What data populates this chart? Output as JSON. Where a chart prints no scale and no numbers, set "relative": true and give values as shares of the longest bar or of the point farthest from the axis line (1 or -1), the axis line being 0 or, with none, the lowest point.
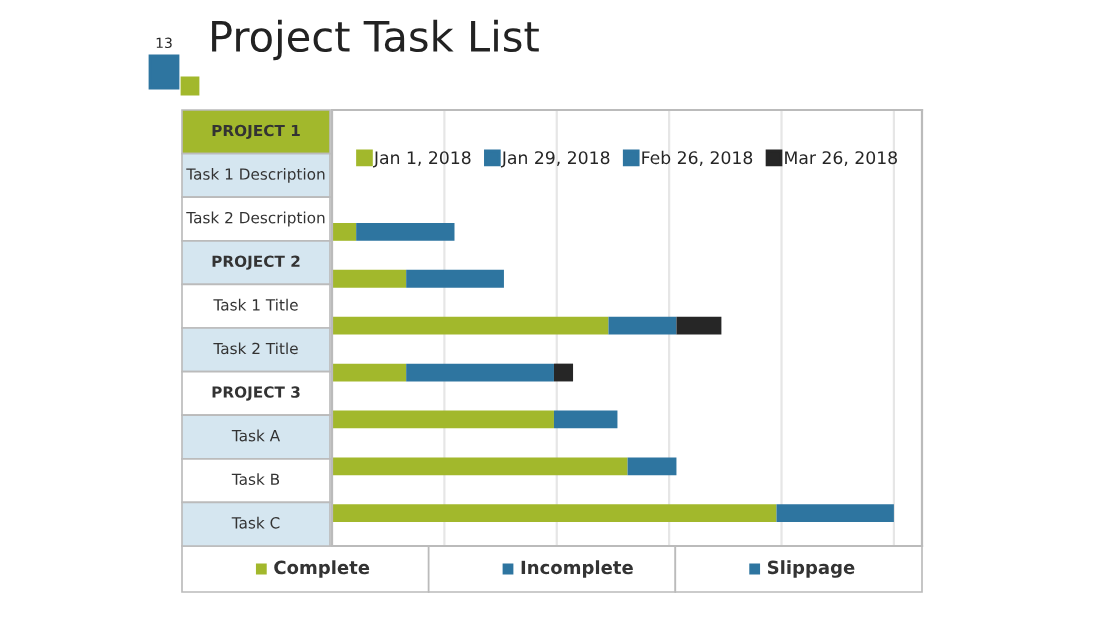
{
  "chart_data": {
    "type": "bar",
    "orientation": "horizontal",
    "stacked": true,
    "relative": true,
    "title": "Project Task List",
    "categories": [
      null,
      null,
      null,
      null,
      null,
      null,
      null
    ],
    "series": [
      {
        "name": "Jan 1, 2018",
        "color": "#a2b82c",
        "values": [
          0.043,
          0.132,
          0.492,
          0.132,
          0.395,
          0.526,
          0.791
        ]
      },
      {
        "name": "Jan 29, 2018",
        "color": "#2e75a0",
        "values": [
          0.175,
          0.174,
          0.121,
          0.263,
          0.113,
          0.087,
          0.209
        ]
      },
      {
        "name": "Feb 26, 2018",
        "color": "#2e75a0",
        "values": [
          null,
          null,
          null,
          null,
          null,
          null,
          null
        ]
      },
      {
        "name": "Mar 26, 2018",
        "color": "#262626",
        "values": [
          null,
          null,
          0.08,
          0.034,
          null,
          null,
          null
        ]
      }
    ],
    "annotations": [
      "13",
      "PROJECT 1",
      "Task 1 Description",
      "Task 2 Description",
      "PROJECT 2",
      "Task 1 Title",
      "Task 2 Title",
      "PROJECT 3",
      "Task A",
      "Task B",
      "Task C",
      "Complete",
      "Incomplete",
      "Slippage"
    ],
    "grid": "x",
    "legend": "top"
  }
}
